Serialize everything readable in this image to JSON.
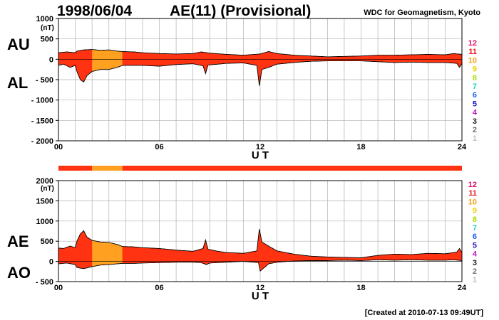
{
  "header": {
    "date": "1998/06/04",
    "title": "AE(11) (Provisional)",
    "source": "WDC for Geomagnetism, Kyoto"
  },
  "footer": {
    "created": "[Created at 2010-07-13 09:49UT]"
  },
  "legend": {
    "levels": [
      {
        "label": "12",
        "color": "#e0106a"
      },
      {
        "label": "11",
        "color": "#e8181c"
      },
      {
        "label": "10",
        "color": "#f0a020"
      },
      {
        "label": "9",
        "color": "#f0d000"
      },
      {
        "label": "8",
        "color": "#a8e000"
      },
      {
        "label": "7",
        "color": "#20d0c0"
      },
      {
        "label": "6",
        "color": "#2060f0"
      },
      {
        "label": "5",
        "color": "#2010c0"
      },
      {
        "label": "4",
        "color": "#c010c0"
      },
      {
        "label": "3",
        "color": "#202020"
      },
      {
        "label": "2",
        "color": "#707070"
      },
      {
        "label": "1",
        "color": "#c0c0c0"
      }
    ]
  },
  "colors": {
    "fill_main": "#ff3311",
    "fill_alt": "#ffa020",
    "outline": "#000000"
  },
  "chart_data": [
    {
      "type": "area",
      "id": "au-al",
      "left_labels": [
        "AU",
        "AL"
      ],
      "xlabel": "U T",
      "xlim": [
        0,
        24
      ],
      "xticks": [
        0,
        6,
        12,
        18,
        24
      ],
      "xtick_labels": [
        "00",
        "06",
        "12",
        "18",
        "24"
      ],
      "ylim": [
        -2000,
        1000
      ],
      "yticks": [
        1000,
        500,
        0,
        -500,
        -1000,
        -1500,
        -2000
      ],
      "ytick_labels": [
        "1000",
        "500",
        "0",
        "- 500",
        "- 1000",
        "- 1500",
        "- 2000"
      ],
      "yunit": "(nT)",
      "grid": true,
      "highlight_hours": [
        [
          2.0,
          3.8
        ]
      ],
      "upper_series": {
        "name": "AU",
        "x": [
          0,
          0.5,
          1.0,
          1.1,
          1.5,
          2.0,
          2.5,
          3.0,
          3.5,
          3.8,
          4.5,
          5.0,
          6.0,
          7.0,
          8.0,
          8.5,
          9.0,
          10.0,
          11.0,
          12.0,
          12.5,
          13.0,
          14.0,
          15.0,
          16.0,
          17.0,
          18.0,
          19.0,
          20.0,
          21.0,
          22.0,
          23.0,
          23.5,
          24.0
        ],
        "values": [
          160,
          180,
          160,
          200,
          230,
          240,
          220,
          230,
          200,
          190,
          180,
          160,
          140,
          130,
          140,
          180,
          150,
          120,
          100,
          130,
          190,
          140,
          100,
          80,
          60,
          70,
          80,
          100,
          100,
          110,
          120,
          110,
          140,
          120
        ]
      },
      "lower_series": {
        "name": "AL",
        "x": [
          0,
          0.3,
          0.7,
          1.0,
          1.1,
          1.3,
          1.5,
          1.7,
          2.0,
          2.5,
          3.0,
          3.5,
          3.8,
          4.5,
          5.0,
          6.0,
          7.0,
          8.0,
          8.6,
          8.75,
          8.9,
          9.5,
          10.0,
          11.0,
          11.8,
          11.95,
          12.1,
          12.5,
          13.0,
          14.0,
          15.0,
          16.0,
          17.0,
          18.0,
          19.0,
          20.0,
          21.0,
          22.0,
          23.0,
          23.7,
          23.85,
          24.0
        ],
        "values": [
          -150,
          -120,
          -200,
          -150,
          -300,
          -500,
          -560,
          -400,
          -300,
          -250,
          -250,
          -200,
          -150,
          -150,
          -150,
          -170,
          -130,
          -110,
          -160,
          -350,
          -140,
          -120,
          -100,
          -90,
          -150,
          -650,
          -250,
          -200,
          -120,
          -80,
          -50,
          -40,
          -40,
          -40,
          -60,
          -80,
          -70,
          -80,
          -80,
          -100,
          -200,
          -100
        ]
      }
    },
    {
      "type": "area",
      "id": "ae-ao",
      "left_labels": [
        "AE",
        "AO"
      ],
      "xlabel": "U T",
      "xlim": [
        0,
        24
      ],
      "xticks": [
        0,
        6,
        12,
        18,
        24
      ],
      "xtick_labels": [
        "00",
        "06",
        "12",
        "18",
        "24"
      ],
      "ylim": [
        -500,
        2000
      ],
      "yticks": [
        2000,
        1500,
        1000,
        500,
        0,
        -500
      ],
      "ytick_labels": [
        "2000",
        "1500",
        "1000",
        "500",
        "0",
        "- 500"
      ],
      "yunit": "(nT)",
      "grid": true,
      "highlight_hours": [
        [
          2.0,
          3.8
        ]
      ],
      "upper_series": {
        "name": "AE",
        "x": [
          0,
          0.3,
          0.7,
          1.0,
          1.1,
          1.3,
          1.5,
          1.7,
          2.0,
          2.5,
          3.0,
          3.5,
          3.8,
          4.5,
          5.0,
          6.0,
          7.0,
          8.0,
          8.6,
          8.75,
          8.9,
          9.5,
          10.0,
          11.0,
          11.8,
          11.95,
          12.1,
          12.5,
          13.0,
          14.0,
          15.0,
          16.0,
          17.0,
          18.0,
          19.0,
          20.0,
          21.0,
          22.0,
          23.0,
          23.7,
          23.85,
          24.0
        ],
        "values": [
          330,
          320,
          380,
          340,
          500,
          680,
          760,
          600,
          520,
          480,
          470,
          420,
          370,
          360,
          340,
          320,
          280,
          250,
          320,
          530,
          300,
          250,
          220,
          200,
          260,
          800,
          480,
          380,
          260,
          180,
          130,
          110,
          100,
          90,
          150,
          180,
          170,
          200,
          190,
          230,
          320,
          220
        ]
      },
      "lower_series": {
        "name": "AO",
        "x": [
          0,
          0.5,
          1.0,
          1.1,
          1.5,
          2.0,
          2.5,
          3.0,
          3.5,
          3.8,
          4.5,
          5.0,
          6.0,
          7.0,
          8.0,
          8.5,
          8.8,
          9.0,
          10.0,
          11.0,
          11.9,
          12.0,
          12.5,
          13.0,
          14.0,
          15.0,
          16.0,
          17.0,
          18.0,
          19.0,
          20.0,
          21.0,
          22.0,
          23.0,
          23.5,
          24.0
        ],
        "values": [
          -60,
          -40,
          -80,
          -150,
          -180,
          -130,
          -90,
          -80,
          -60,
          -50,
          -50,
          -40,
          -30,
          -20,
          -20,
          -30,
          -80,
          -40,
          -20,
          0,
          -30,
          -240,
          -60,
          -20,
          10,
          20,
          20,
          30,
          20,
          40,
          30,
          40,
          30,
          30,
          40,
          20
        ]
      }
    }
  ],
  "status_bar": {
    "segments": [
      {
        "from": 0,
        "to": 2.0,
        "level": "11"
      },
      {
        "from": 2.0,
        "to": 3.8,
        "level": "10"
      },
      {
        "from": 3.8,
        "to": 24,
        "level": "11"
      }
    ]
  }
}
